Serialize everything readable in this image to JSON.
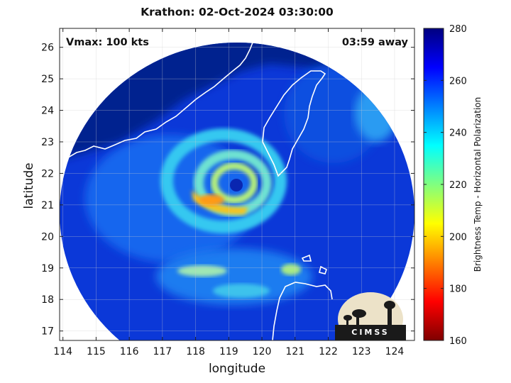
{
  "chart_data": {
    "type": "heatmap",
    "title": "Krathon: 02-Oct-2024 03:30:00",
    "xlabel": "longitude",
    "ylabel": "latitude",
    "xlim": [
      113.9,
      124.6
    ],
    "ylim": [
      16.7,
      26.6
    ],
    "xticks": [
      114,
      115,
      116,
      117,
      118,
      119,
      120,
      121,
      122,
      123,
      124
    ],
    "yticks": [
      17,
      18,
      19,
      20,
      21,
      22,
      23,
      24,
      25,
      26
    ],
    "grid": true,
    "annotations": {
      "vmax": "Vmax: 100 kts",
      "time_away": "03:59 away"
    },
    "storm_center": {
      "lon": 119.3,
      "lat": 21.7
    },
    "colorbar": {
      "label": "Brightness Temp - Horizontal Polarization",
      "range": [
        160,
        280
      ],
      "ticks": [
        160,
        180,
        200,
        220,
        240,
        260,
        280
      ],
      "colors": [
        "#7f0000",
        "#ff0000",
        "#ff8000",
        "#ffff00",
        "#80ff80",
        "#00ffff",
        "#0080ff",
        "#0000ff",
        "#00007f"
      ]
    },
    "logo_text": "CIMSS"
  }
}
